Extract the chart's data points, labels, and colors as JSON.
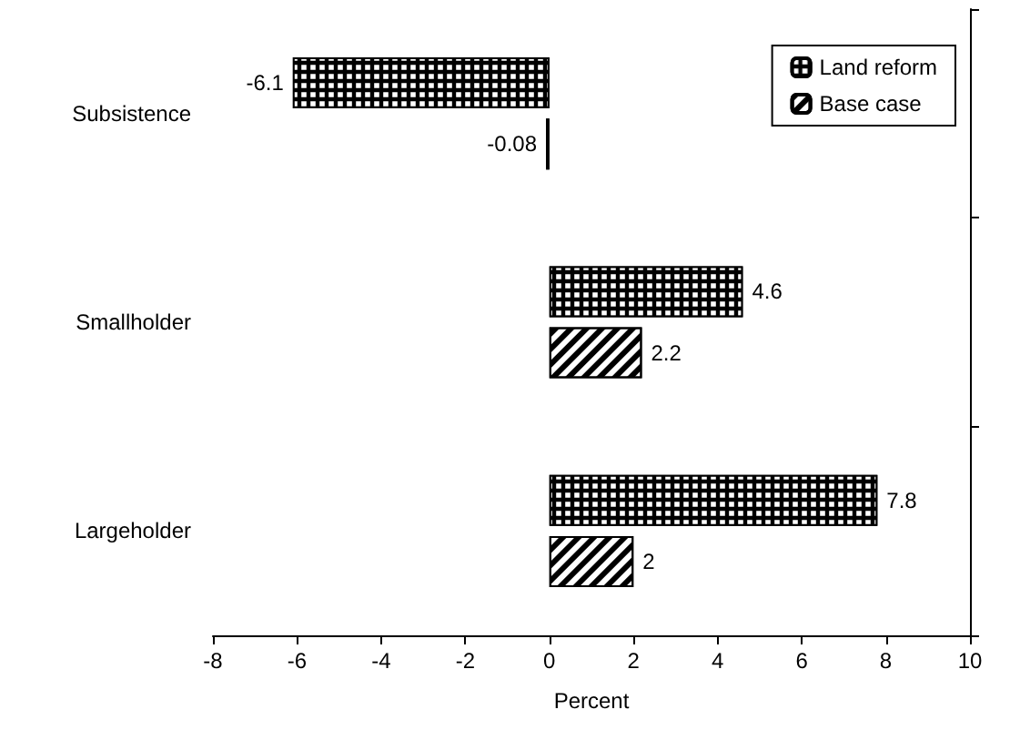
{
  "chart_data": {
    "type": "bar",
    "orientation": "horizontal",
    "xlabel": "Percent",
    "categories": [
      "Subsistence",
      "Smallholder",
      "Largeholder"
    ],
    "series": [
      {
        "name": "Land reform",
        "color": "#000000",
        "values": [
          -6.1,
          4.6,
          7.8
        ]
      },
      {
        "name": "Base case",
        "color": "#000000",
        "values": [
          -0.08,
          2.2,
          2
        ]
      }
    ],
    "xlim": [
      -8,
      10
    ],
    "xticks": [
      -8,
      -6,
      -4,
      -2,
      0,
      2,
      4,
      6,
      8,
      10
    ],
    "data_labels": true,
    "legend": "top right",
    "grid": false
  }
}
